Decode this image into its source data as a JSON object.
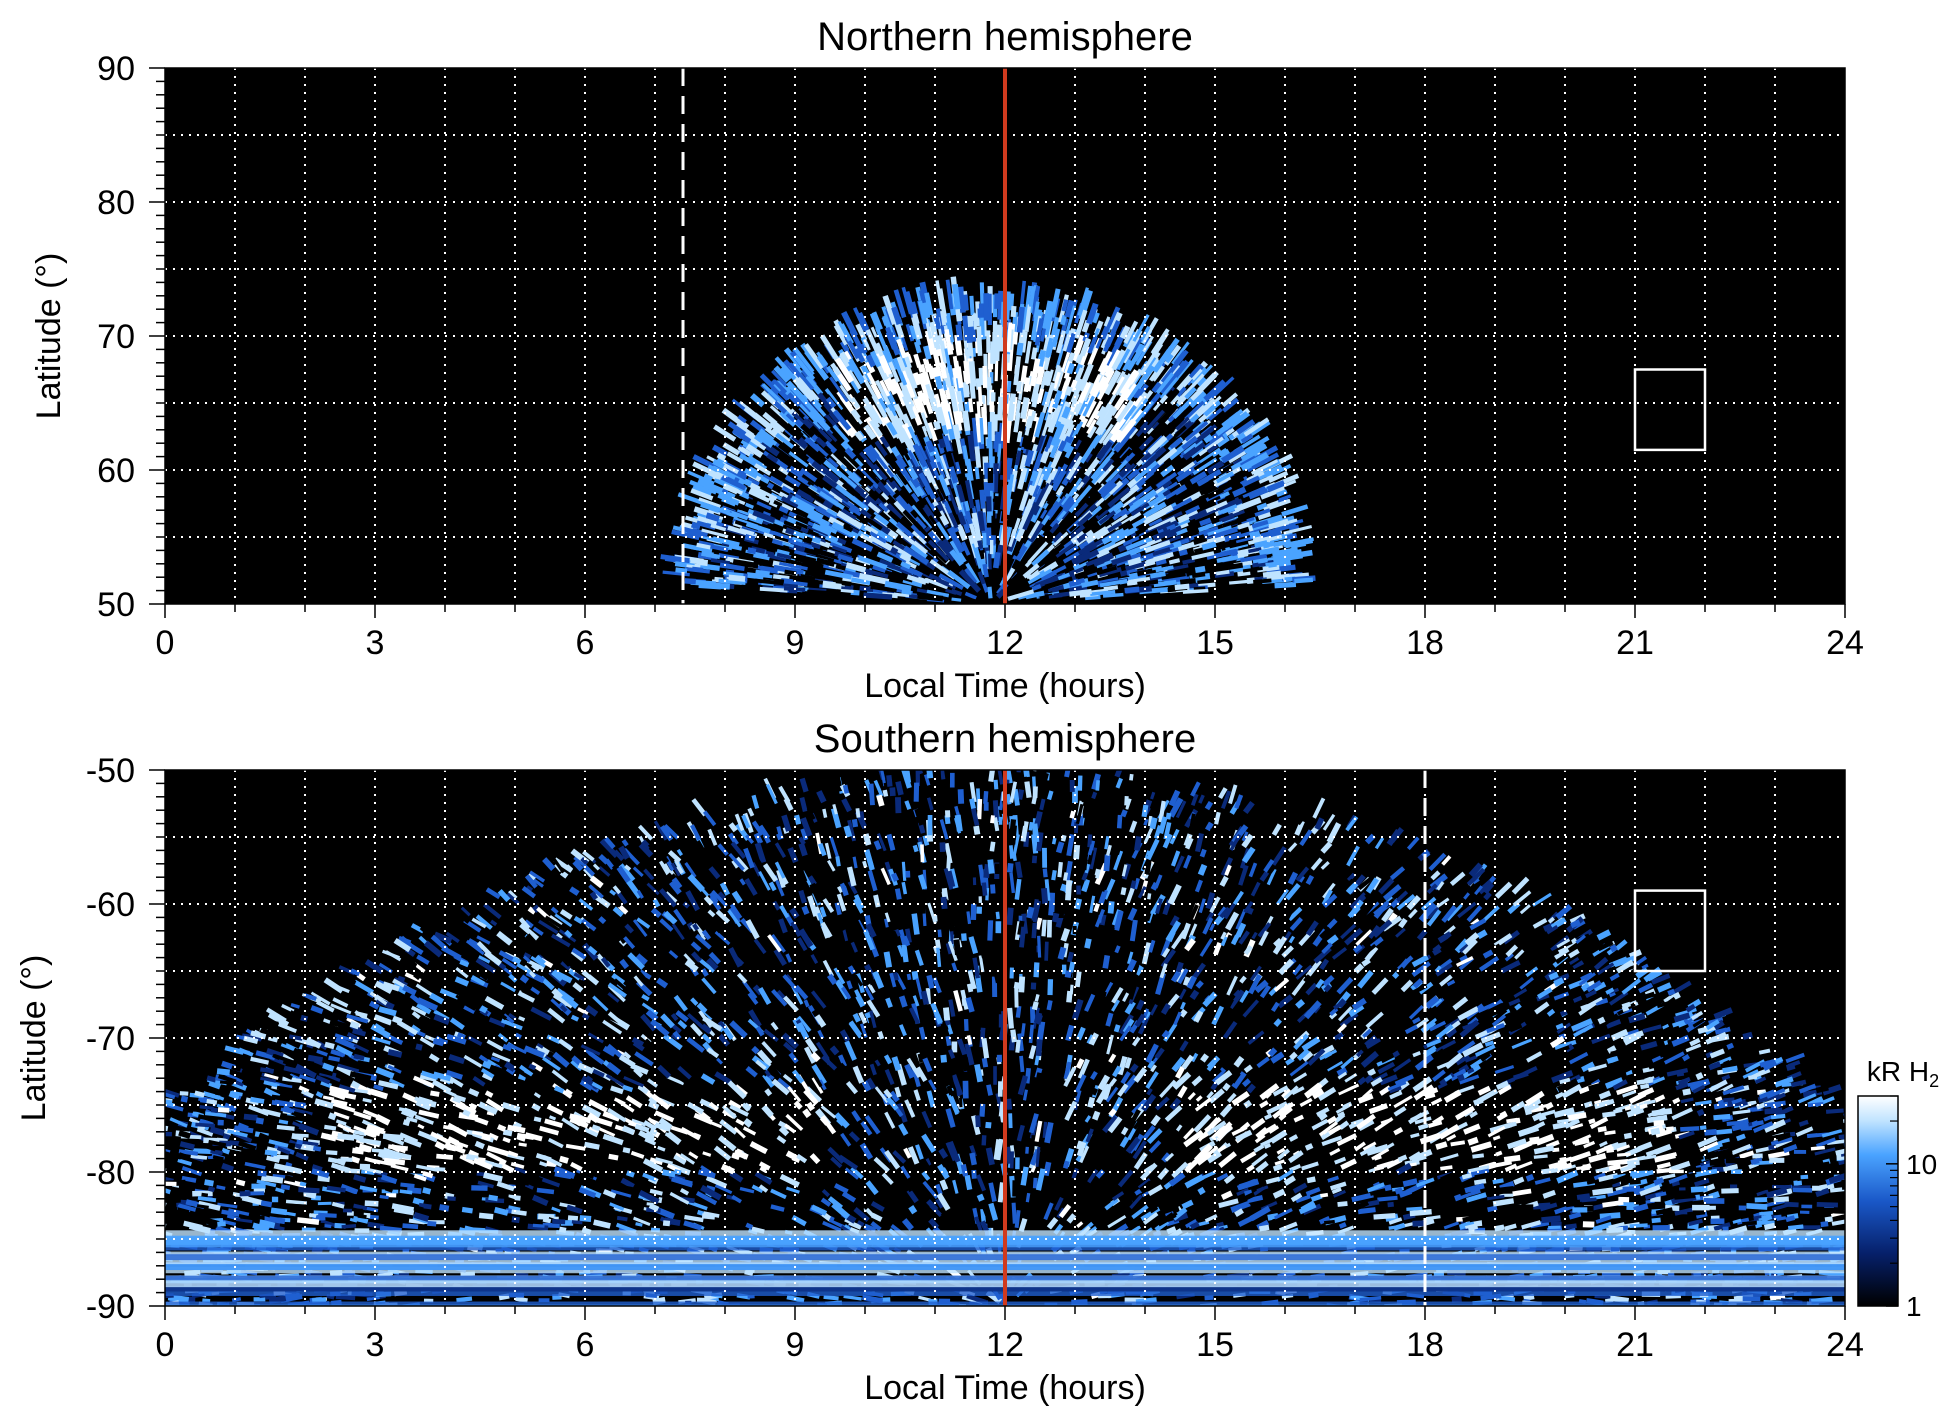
{
  "chart_data": [
    {
      "type": "heatmap",
      "title": "Northern hemisphere",
      "xlabel": "Local Time (hours)",
      "ylabel": "Latitude (°)",
      "xlim": [
        0,
        24
      ],
      "ylim": [
        50,
        90
      ],
      "xticks": [
        "0",
        "3",
        "6",
        "9",
        "12",
        "15",
        "18",
        "21",
        "24"
      ],
      "yticks": [
        "50",
        "60",
        "70",
        "80",
        "90"
      ],
      "grid": true,
      "background_color": "#000000",
      "colormap": [
        "#000000",
        "#0a2a7a",
        "#1f5fd0",
        "#4aa3ff",
        "#bfe3ff",
        "#ffffff"
      ],
      "emission_region": {
        "lt_range": [
          7.6,
          16.6
        ],
        "center_lt": 11.8,
        "max_latitude": 73,
        "bright_band_latitude": [
          62,
          70
        ]
      },
      "markers": {
        "noon_line": {
          "x": 12,
          "color": "#d03a1e"
        },
        "dashed_line": {
          "x": 7.4,
          "color": "#ffffff"
        },
        "box": {
          "x": [
            21,
            22
          ],
          "y": [
            61.5,
            67.5
          ],
          "color": "#ffffff"
        }
      }
    },
    {
      "type": "heatmap",
      "title": "Southern hemisphere",
      "xlabel": "Local Time (hours)",
      "ylabel": "Latitude (°)",
      "xlim": [
        0,
        24
      ],
      "ylim": [
        -90,
        -50
      ],
      "xticks": [
        "0",
        "3",
        "6",
        "9",
        "12",
        "15",
        "18",
        "21",
        "24"
      ],
      "yticks": [
        "-90",
        "-80",
        "-70",
        "-60",
        "-50"
      ],
      "grid": true,
      "background_color": "#000000",
      "colormap": [
        "#000000",
        "#0a2a7a",
        "#1f5fd0",
        "#4aa3ff",
        "#bfe3ff",
        "#ffffff"
      ],
      "emission_region": {
        "lt_range": [
          0,
          24
        ],
        "center_lt": 12,
        "bright_oval_latitude": -77
      },
      "markers": {
        "noon_line": {
          "x": 12,
          "color": "#d03a1e"
        },
        "dashed_line": {
          "x": 18.0,
          "color": "#ffffff"
        },
        "box": {
          "x": [
            21,
            22
          ],
          "y": [
            -65,
            -59
          ],
          "color": "#ffffff"
        }
      },
      "colorbar": {
        "title": "kR H",
        "title_subscript": "2",
        "scale": "log",
        "range": [
          1,
          30
        ],
        "ticks": [
          "1",
          "10"
        ]
      }
    }
  ]
}
